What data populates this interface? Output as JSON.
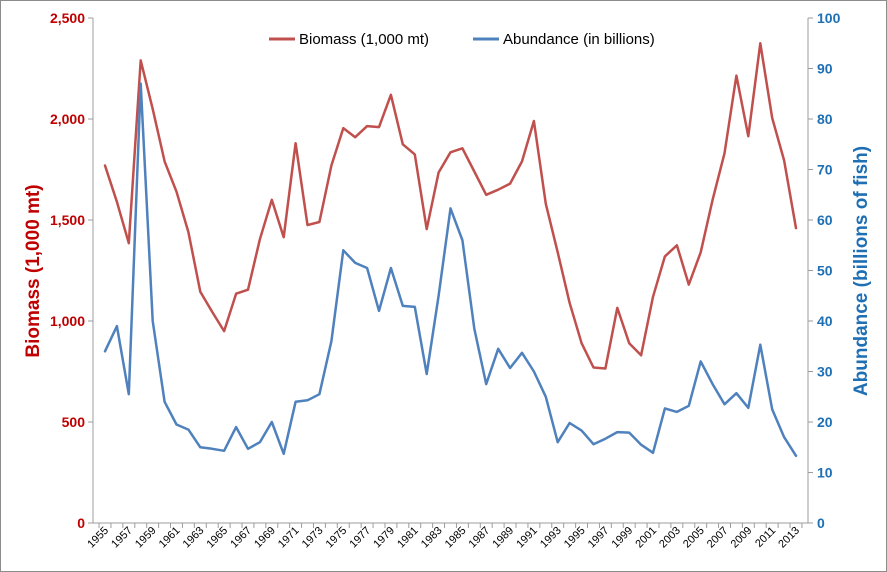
{
  "chart_data": {
    "type": "line",
    "title": "",
    "legend": {
      "placement": "top-center"
    },
    "grid": false,
    "x": [
      1955,
      1956,
      1957,
      1958,
      1959,
      1960,
      1961,
      1962,
      1963,
      1964,
      1965,
      1966,
      1967,
      1968,
      1969,
      1970,
      1971,
      1972,
      1973,
      1974,
      1975,
      1976,
      1977,
      1978,
      1979,
      1980,
      1981,
      1982,
      1983,
      1984,
      1985,
      1986,
      1987,
      1988,
      1989,
      1990,
      1991,
      1992,
      1993,
      1994,
      1995,
      1996,
      1997,
      1998,
      1999,
      2000,
      2001,
      2002,
      2003,
      2004,
      2005,
      2006,
      2007,
      2008,
      2009,
      2010,
      2011,
      2012,
      2013
    ],
    "x_tick_labels": [
      "1955",
      "1957",
      "1959",
      "1961",
      "1963",
      "1965",
      "1967",
      "1969",
      "1971",
      "1973",
      "1975",
      "1977",
      "1979",
      "1981",
      "1983",
      "1985",
      "1987",
      "1989",
      "1991",
      "1993",
      "1995",
      "1997",
      "1999",
      "2001",
      "2003",
      "2005",
      "2007",
      "2009",
      "2011",
      "2013"
    ],
    "y_left": {
      "label": "Biomass (1,000 mt)",
      "range": [
        0,
        2500
      ],
      "ticks": [
        "0",
        "500",
        "1,000",
        "1,500",
        "2,000",
        "2,500"
      ],
      "color": "#c00000"
    },
    "y_right": {
      "label": "Abundance (billions of fish)",
      "range": [
        0,
        100
      ],
      "ticks": [
        "0",
        "10",
        "20",
        "30",
        "40",
        "50",
        "60",
        "70",
        "80",
        "90",
        "100"
      ],
      "color": "#1f6fb4"
    },
    "series": [
      {
        "name": "Biomass (1,000 mt)",
        "axis": "left",
        "color": "#c0504d",
        "values": [
          1770,
          1590,
          1385,
          2290,
          2050,
          1790,
          1640,
          1440,
          1145,
          1045,
          950,
          1135,
          1155,
          1405,
          1600,
          1415,
          1880,
          1475,
          1490,
          1770,
          1955,
          1910,
          1965,
          1960,
          2120,
          1875,
          1825,
          1455,
          1735,
          1835,
          1855,
          1740,
          1625,
          1650,
          1680,
          1790,
          1990,
          1580,
          1340,
          1090,
          890,
          770,
          765,
          1065,
          890,
          830,
          1120,
          1320,
          1375,
          1180,
          1340,
          1600,
          1830,
          2215,
          1915,
          2375,
          2005,
          1795,
          1460
        ]
      },
      {
        "name": "Abundance (in billions)",
        "axis": "right",
        "color": "#4f81bd",
        "values": [
          34,
          39,
          25.5,
          87,
          40,
          24,
          19.5,
          18.5,
          15,
          14.7,
          14.3,
          19,
          14.7,
          16,
          20,
          13.7,
          24,
          24.3,
          25.5,
          36,
          54,
          51.5,
          50.5,
          42,
          50.5,
          43,
          42.8,
          29.5,
          45,
          62.3,
          56,
          38.5,
          27.5,
          34.5,
          30.7,
          33.7,
          30,
          25,
          16,
          19.8,
          18.3,
          15.6,
          16.7,
          18,
          17.9,
          15.5,
          13.9,
          22.7,
          22,
          23.2,
          32,
          27.5,
          23.5,
          25.7,
          22.8,
          35.3,
          22.5,
          17,
          13.3
        ]
      }
    ]
  }
}
